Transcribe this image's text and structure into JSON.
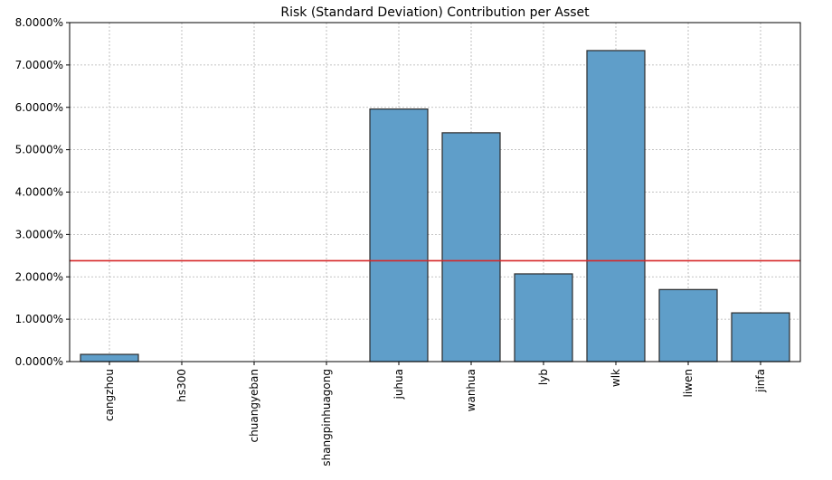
{
  "chart_data": {
    "type": "bar",
    "title": "Risk (Standard Deviation) Contribution per Asset",
    "xlabel": "",
    "ylabel": "",
    "categories": [
      "cangzhou",
      "hs300",
      "chuangyeban",
      "shangpinhuagong",
      "juhua",
      "wanhua",
      "lyb",
      "wlk",
      "liwen",
      "jinfa"
    ],
    "values": [
      0.17,
      0.0,
      0.0,
      0.0,
      5.96,
      5.4,
      2.07,
      7.34,
      1.7,
      1.15
    ],
    "ylim": [
      0,
      8
    ],
    "yticks": [
      0,
      1,
      2,
      3,
      4,
      5,
      6,
      7,
      8
    ],
    "ytick_labels": [
      "0.0000%",
      "1.0000%",
      "2.0000%",
      "3.0000%",
      "4.0000%",
      "5.0000%",
      "6.0000%",
      "7.0000%",
      "8.0000%"
    ],
    "reference_line": {
      "value": 2.38,
      "color": "#d62728"
    },
    "bar_color": "#5f9ec9",
    "grid": true
  }
}
